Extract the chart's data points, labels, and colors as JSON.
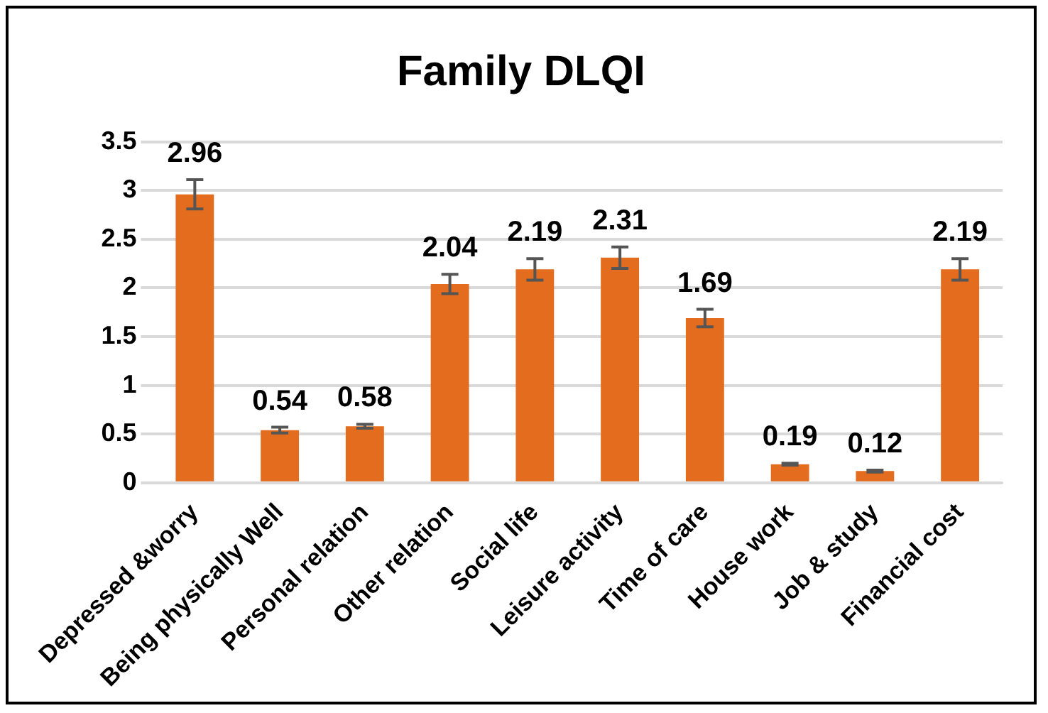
{
  "chart_data": {
    "type": "bar",
    "title": "Family DLQI",
    "categories": [
      "Depressed &worry",
      "Being physically Well",
      "Personal relation",
      "Other relation",
      "Social life",
      "Leisure activity",
      "Time of care",
      "House work",
      "Job & study",
      "Financial cost"
    ],
    "values": [
      2.96,
      0.54,
      0.58,
      2.04,
      2.19,
      2.31,
      1.69,
      0.19,
      0.12,
      2.19
    ],
    "errors": [
      0.15,
      0.03,
      0.02,
      0.1,
      0.11,
      0.11,
      0.09,
      0.01,
      0.01,
      0.11
    ],
    "color": "#e46c1e",
    "ylim": [
      0,
      3.5
    ],
    "yticks": [
      0,
      0.5,
      1,
      1.5,
      2,
      2.5,
      3,
      3.5
    ],
    "grid": "y",
    "data_labels": true,
    "legend": false
  }
}
